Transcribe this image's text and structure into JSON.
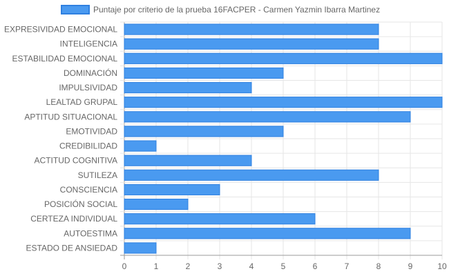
{
  "chart_data": {
    "type": "bar",
    "orientation": "horizontal",
    "categories": [
      "EXPRESIVIDAD EMOCIONAL",
      "INTELIGENCIA",
      "ESTABILIDAD EMOCIONAL",
      "DOMINACIÓN",
      "IMPULSIVIDAD",
      "LEALTAD GRUPAL",
      "APTITUD SITUACIONAL",
      "EMOTIVIDAD",
      "CREDIBILIDAD",
      "ACTITUD COGNITIVA",
      "SUTILEZA",
      "CONSCIENCIA",
      "POSICIÓN SOCIAL",
      "CERTEZA INDIVIDUAL",
      "AUTOESTIMA",
      "ESTADO DE ANSIEDAD"
    ],
    "series": [
      {
        "name": "Puntaje por criterio de la prueba 16FACPER - Carmen Yazmin Ibarra Martinez",
        "values": [
          8,
          8,
          10,
          5,
          4,
          10,
          9,
          5,
          1,
          4,
          8,
          3,
          2,
          6,
          9,
          1
        ]
      }
    ],
    "xlim": [
      0,
      10
    ],
    "xticks": [
      "0",
      "1",
      "2",
      "3",
      "4",
      "5",
      "6",
      "7",
      "8",
      "9",
      "10"
    ],
    "grid": true,
    "legend": "top-center",
    "colors": {
      "bar_fill": "#4a9af0",
      "bar_border": "#2f80e0",
      "grid": "#e6e6e6",
      "axis": "#999999",
      "text": "#666666"
    }
  }
}
